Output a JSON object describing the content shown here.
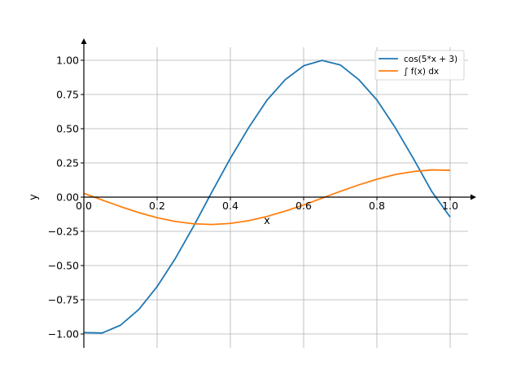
{
  "chart_data": {
    "type": "line",
    "xlabel": "x",
    "ylabel": "y",
    "xlim": [
      0.0,
      1.0
    ],
    "ylim": [
      -1.1,
      1.1
    ],
    "x_ticks": [
      {
        "value": 0.0,
        "label": "0.0"
      },
      {
        "value": 0.2,
        "label": "0.2"
      },
      {
        "value": 0.4,
        "label": "0.4"
      },
      {
        "value": 0.6,
        "label": "0.6"
      },
      {
        "value": 0.8,
        "label": "0.8"
      },
      {
        "value": 1.0,
        "label": "1.0"
      }
    ],
    "y_ticks": [
      {
        "value": 1.0,
        "label": "1.00"
      },
      {
        "value": 0.75,
        "label": "0.75"
      },
      {
        "value": 0.5,
        "label": "0.50"
      },
      {
        "value": 0.25,
        "label": "0.25"
      },
      {
        "value": 0.0,
        "label": "0.00"
      },
      {
        "value": -0.25,
        "label": "−0.25"
      },
      {
        "value": -0.5,
        "label": "−0.50"
      },
      {
        "value": -0.75,
        "label": "−0.75"
      },
      {
        "value": -1.0,
        "label": "−1.00"
      }
    ],
    "grid": true,
    "legend_position": "top-right",
    "series": [
      {
        "name": "cos(5*x + 3)",
        "color": "#1f77b4",
        "x": [
          0.0,
          0.05,
          0.1,
          0.15,
          0.2,
          0.25,
          0.3,
          0.35,
          0.4,
          0.45,
          0.5,
          0.55,
          0.6,
          0.65,
          0.7,
          0.75,
          0.8,
          0.85,
          0.9,
          0.95,
          1.0
        ],
        "y": [
          -0.99,
          -0.993,
          -0.936,
          -0.821,
          -0.654,
          -0.447,
          -0.211,
          0.04,
          0.284,
          0.508,
          0.709,
          0.859,
          0.96,
          0.999,
          0.966,
          0.86,
          0.71,
          0.508,
          0.28,
          0.04,
          -0.146
        ]
      },
      {
        "name": "∫ f(x) dx",
        "color": "#ff7f0e",
        "x": [
          0.0,
          0.05,
          0.1,
          0.15,
          0.2,
          0.25,
          0.3,
          0.35,
          0.4,
          0.45,
          0.5,
          0.55,
          0.6,
          0.65,
          0.7,
          0.75,
          0.8,
          0.85,
          0.9,
          0.95,
          1.0
        ],
        "y": [
          0.028,
          -0.021,
          -0.069,
          -0.113,
          -0.15,
          -0.178,
          -0.195,
          -0.2,
          -0.192,
          -0.172,
          -0.141,
          -0.102,
          -0.057,
          -0.008,
          0.042,
          0.089,
          0.131,
          0.165,
          0.187,
          0.199,
          0.196
        ]
      }
    ]
  }
}
